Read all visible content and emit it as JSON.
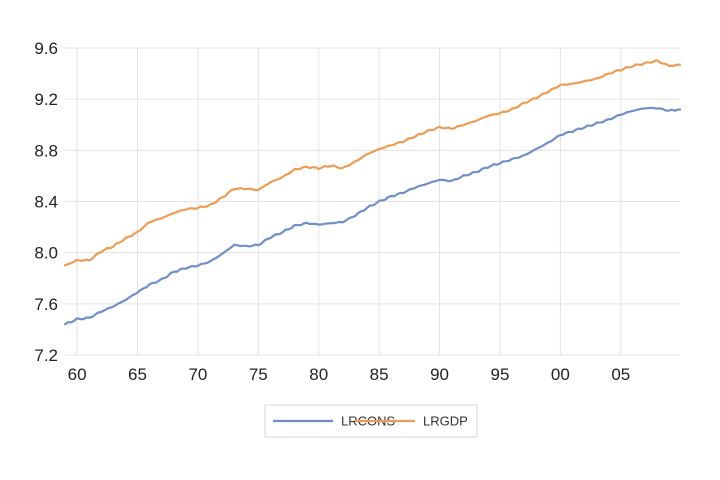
{
  "chart_data": {
    "type": "line",
    "title": "",
    "xlabel": "",
    "ylabel": "",
    "x_range": [
      1959,
      2009.9
    ],
    "ylim": [
      7.2,
      9.6
    ],
    "x_ticks": [
      {
        "value": 1960,
        "label": "60"
      },
      {
        "value": 1965,
        "label": "65"
      },
      {
        "value": 1970,
        "label": "70"
      },
      {
        "value": 1975,
        "label": "75"
      },
      {
        "value": 1980,
        "label": "80"
      },
      {
        "value": 1985,
        "label": "85"
      },
      {
        "value": 1990,
        "label": "90"
      },
      {
        "value": 1995,
        "label": "95"
      },
      {
        "value": 2000,
        "label": "00"
      },
      {
        "value": 2005,
        "label": "05"
      }
    ],
    "y_ticks": [
      {
        "value": 7.2,
        "label": "7.2"
      },
      {
        "value": 7.6,
        "label": "7.6"
      },
      {
        "value": 8.0,
        "label": "8.0"
      },
      {
        "value": 8.4,
        "label": "8.4"
      },
      {
        "value": 8.8,
        "label": "8.8"
      },
      {
        "value": 9.2,
        "label": "9.2"
      },
      {
        "value": 9.6,
        "label": "9.6"
      }
    ],
    "grid": true,
    "legend_position": "bottom",
    "series": [
      {
        "name": "LRCONS",
        "color": "#6f8fc8",
        "points": [
          [
            1959.0,
            7.44
          ],
          [
            1960.0,
            7.48
          ],
          [
            1961.0,
            7.49
          ],
          [
            1962.0,
            7.54
          ],
          [
            1963.0,
            7.58
          ],
          [
            1964.0,
            7.63
          ],
          [
            1965.0,
            7.69
          ],
          [
            1966.0,
            7.75
          ],
          [
            1967.0,
            7.79
          ],
          [
            1968.0,
            7.85
          ],
          [
            1969.0,
            7.88
          ],
          [
            1970.0,
            7.9
          ],
          [
            1971.0,
            7.93
          ],
          [
            1972.0,
            7.99
          ],
          [
            1973.0,
            8.06
          ],
          [
            1974.0,
            8.05
          ],
          [
            1975.0,
            8.06
          ],
          [
            1976.0,
            8.12
          ],
          [
            1977.0,
            8.16
          ],
          [
            1978.0,
            8.21
          ],
          [
            1979.0,
            8.23
          ],
          [
            1980.0,
            8.22
          ],
          [
            1981.0,
            8.23
          ],
          [
            1982.0,
            8.24
          ],
          [
            1983.0,
            8.29
          ],
          [
            1984.0,
            8.35
          ],
          [
            1985.0,
            8.4
          ],
          [
            1986.0,
            8.44
          ],
          [
            1987.0,
            8.47
          ],
          [
            1988.0,
            8.51
          ],
          [
            1989.0,
            8.54
          ],
          [
            1990.0,
            8.57
          ],
          [
            1991.0,
            8.56
          ],
          [
            1992.0,
            8.6
          ],
          [
            1993.0,
            8.63
          ],
          [
            1994.0,
            8.67
          ],
          [
            1995.0,
            8.7
          ],
          [
            1996.0,
            8.73
          ],
          [
            1997.0,
            8.76
          ],
          [
            1998.0,
            8.81
          ],
          [
            1999.0,
            8.86
          ],
          [
            2000.0,
            8.92
          ],
          [
            2001.0,
            8.95
          ],
          [
            2002.0,
            8.98
          ],
          [
            2003.0,
            9.01
          ],
          [
            2004.0,
            9.04
          ],
          [
            2005.0,
            9.08
          ],
          [
            2006.0,
            9.11
          ],
          [
            2007.0,
            9.13
          ],
          [
            2008.0,
            9.13
          ],
          [
            2009.0,
            9.11
          ],
          [
            2009.9,
            9.12
          ]
        ]
      },
      {
        "name": "LRGDP",
        "color": "#ee9c55",
        "points": [
          [
            1959.0,
            7.9
          ],
          [
            1960.0,
            7.94
          ],
          [
            1961.0,
            7.94
          ],
          [
            1962.0,
            8.01
          ],
          [
            1963.0,
            8.05
          ],
          [
            1964.0,
            8.11
          ],
          [
            1965.0,
            8.16
          ],
          [
            1966.0,
            8.24
          ],
          [
            1967.0,
            8.27
          ],
          [
            1968.0,
            8.31
          ],
          [
            1969.0,
            8.34
          ],
          [
            1970.0,
            8.35
          ],
          [
            1971.0,
            8.37
          ],
          [
            1972.0,
            8.43
          ],
          [
            1973.0,
            8.5
          ],
          [
            1974.0,
            8.5
          ],
          [
            1975.0,
            8.49
          ],
          [
            1976.0,
            8.55
          ],
          [
            1977.0,
            8.59
          ],
          [
            1978.0,
            8.65
          ],
          [
            1979.0,
            8.67
          ],
          [
            1980.0,
            8.66
          ],
          [
            1981.0,
            8.68
          ],
          [
            1982.0,
            8.66
          ],
          [
            1983.0,
            8.71
          ],
          [
            1984.0,
            8.77
          ],
          [
            1985.0,
            8.81
          ],
          [
            1986.0,
            8.84
          ],
          [
            1987.0,
            8.87
          ],
          [
            1988.0,
            8.91
          ],
          [
            1989.0,
            8.95
          ],
          [
            1990.0,
            8.98
          ],
          [
            1991.0,
            8.97
          ],
          [
            1992.0,
            9.0
          ],
          [
            1993.0,
            9.03
          ],
          [
            1994.0,
            9.07
          ],
          [
            1995.0,
            9.09
          ],
          [
            1996.0,
            9.12
          ],
          [
            1997.0,
            9.17
          ],
          [
            1998.0,
            9.21
          ],
          [
            1999.0,
            9.26
          ],
          [
            2000.0,
            9.31
          ],
          [
            2001.0,
            9.32
          ],
          [
            2002.0,
            9.34
          ],
          [
            2003.0,
            9.36
          ],
          [
            2004.0,
            9.4
          ],
          [
            2005.0,
            9.43
          ],
          [
            2006.0,
            9.46
          ],
          [
            2007.0,
            9.48
          ],
          [
            2008.0,
            9.5
          ],
          [
            2009.0,
            9.46
          ],
          [
            2009.9,
            9.47
          ]
        ]
      }
    ]
  }
}
